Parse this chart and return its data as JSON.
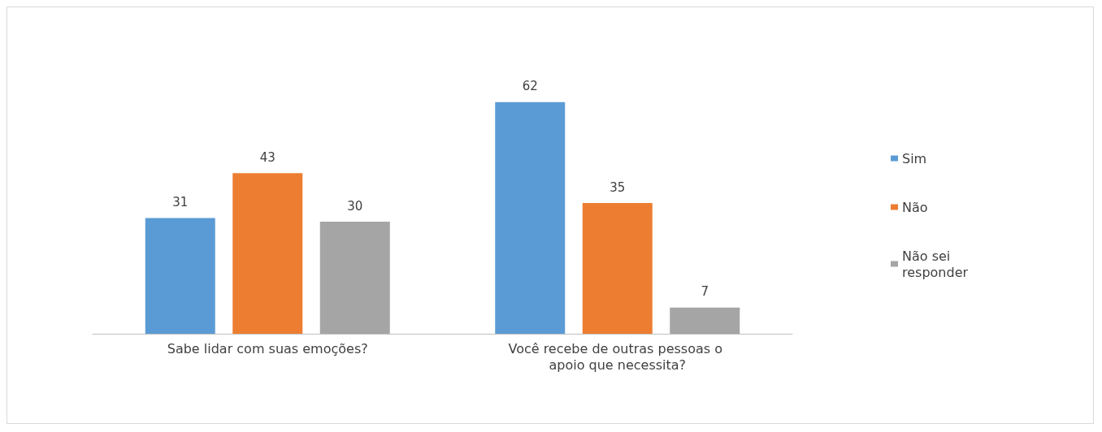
{
  "chart_data": {
    "type": "bar",
    "categories": [
      "Sabe lidar com suas emoções?",
      "Você recebe de outras pessoas o apoio que necessita?"
    ],
    "series": [
      {
        "name": "Sim",
        "color": "#5b9bd5",
        "values": [
          31,
          62
        ]
      },
      {
        "name": "Não",
        "color": "#ed7d31",
        "values": [
          43,
          35
        ]
      },
      {
        "name": "Não sei responder",
        "color": "#a5a5a5",
        "values": [
          30,
          7
        ]
      }
    ],
    "data_labels": true,
    "legend": "right",
    "grid": false
  }
}
